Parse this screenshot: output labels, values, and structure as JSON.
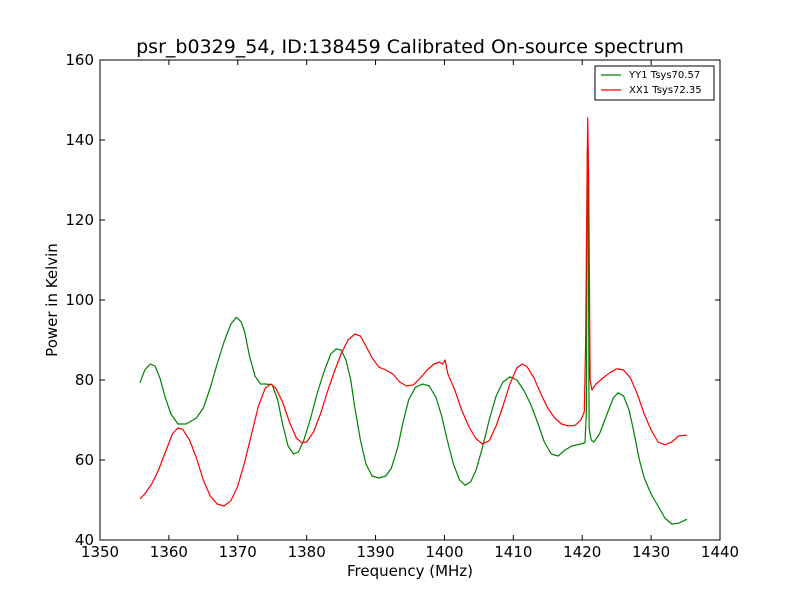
{
  "chart_data": {
    "type": "line",
    "title": "psr_b0329_54, ID:138459 Calibrated On-source spectrum",
    "xlabel": "Frequency (MHz)",
    "ylabel": "Power in Kelvin",
    "xlim": [
      1350,
      1440
    ],
    "ylim": [
      40,
      160
    ],
    "xticks": [
      1350,
      1360,
      1370,
      1380,
      1390,
      1400,
      1410,
      1420,
      1430,
      1440
    ],
    "yticks": [
      40,
      60,
      80,
      100,
      120,
      140,
      160
    ],
    "grid": false,
    "legend_position": "top-right",
    "series": [
      {
        "name": "YY1 Tsys70.57",
        "color": "#008000",
        "points": [
          [
            1355.8,
            79.3
          ],
          [
            1356.5,
            82.5
          ],
          [
            1357.3,
            84.0
          ],
          [
            1358.0,
            83.5
          ],
          [
            1358.7,
            80.5
          ],
          [
            1359.5,
            75.5
          ],
          [
            1360.3,
            71.5
          ],
          [
            1361.3,
            69.0
          ],
          [
            1362.5,
            69.0
          ],
          [
            1364.0,
            70.5
          ],
          [
            1365.0,
            73.0
          ],
          [
            1366.0,
            78.0
          ],
          [
            1367.0,
            84.0
          ],
          [
            1368.0,
            89.5
          ],
          [
            1369.0,
            94.0
          ],
          [
            1369.8,
            95.7
          ],
          [
            1370.5,
            94.5
          ],
          [
            1371.0,
            92.0
          ],
          [
            1371.7,
            86.0
          ],
          [
            1372.5,
            81.0
          ],
          [
            1373.3,
            79.0
          ],
          [
            1374.0,
            79.0
          ],
          [
            1375.0,
            78.8
          ],
          [
            1375.8,
            75.0
          ],
          [
            1376.5,
            69.0
          ],
          [
            1377.3,
            63.5
          ],
          [
            1378.1,
            61.5
          ],
          [
            1378.8,
            62.0
          ],
          [
            1379.5,
            64.5
          ],
          [
            1380.5,
            70.0
          ],
          [
            1381.5,
            76.5
          ],
          [
            1382.5,
            82.0
          ],
          [
            1383.5,
            86.5
          ],
          [
            1384.3,
            87.8
          ],
          [
            1385.0,
            87.5
          ],
          [
            1385.7,
            85.0
          ],
          [
            1386.4,
            80.0
          ],
          [
            1387.0,
            73.0
          ],
          [
            1387.8,
            65.0
          ],
          [
            1388.6,
            59.0
          ],
          [
            1389.5,
            56.0
          ],
          [
            1390.5,
            55.5
          ],
          [
            1391.5,
            56.0
          ],
          [
            1392.3,
            58.0
          ],
          [
            1393.2,
            63.0
          ],
          [
            1394.0,
            69.5
          ],
          [
            1394.8,
            75.0
          ],
          [
            1395.8,
            78.2
          ],
          [
            1396.8,
            79.0
          ],
          [
            1397.8,
            78.5
          ],
          [
            1398.8,
            75.5
          ],
          [
            1399.6,
            71.0
          ],
          [
            1400.4,
            65.0
          ],
          [
            1401.3,
            59.0
          ],
          [
            1402.2,
            55.0
          ],
          [
            1403.0,
            53.7
          ],
          [
            1403.8,
            54.5
          ],
          [
            1404.6,
            57.5
          ],
          [
            1405.5,
            63.0
          ],
          [
            1406.5,
            70.0
          ],
          [
            1407.5,
            76.0
          ],
          [
            1408.5,
            79.5
          ],
          [
            1409.5,
            80.8
          ],
          [
            1410.5,
            80.0
          ],
          [
            1411.5,
            77.5
          ],
          [
            1412.5,
            74.0
          ],
          [
            1413.5,
            69.5
          ],
          [
            1414.5,
            64.5
          ],
          [
            1415.5,
            61.5
          ],
          [
            1416.5,
            61.0
          ],
          [
            1417.5,
            62.5
          ],
          [
            1418.5,
            63.5
          ],
          [
            1419.8,
            64.0
          ],
          [
            1420.4,
            64.3
          ],
          [
            1420.6,
            72.0
          ],
          [
            1420.75,
            138.0
          ],
          [
            1420.85,
            138.0
          ],
          [
            1421.0,
            68.0
          ],
          [
            1421.3,
            65.0
          ],
          [
            1421.7,
            64.5
          ],
          [
            1422.5,
            66.5
          ],
          [
            1423.5,
            71.0
          ],
          [
            1424.5,
            75.5
          ],
          [
            1425.2,
            76.8
          ],
          [
            1426.0,
            76.0
          ],
          [
            1426.8,
            72.5
          ],
          [
            1427.5,
            67.0
          ],
          [
            1428.3,
            60.0
          ],
          [
            1429.0,
            55.5
          ],
          [
            1430.0,
            51.5
          ],
          [
            1431.0,
            48.5
          ],
          [
            1432.0,
            45.5
          ],
          [
            1433.0,
            44.0
          ],
          [
            1434.0,
            44.2
          ],
          [
            1435.2,
            45.2
          ]
        ]
      },
      {
        "name": "XX1 Tsys72.35",
        "color": "#ff0000",
        "points": [
          [
            1355.8,
            50.3
          ],
          [
            1356.5,
            51.5
          ],
          [
            1357.5,
            54.0
          ],
          [
            1358.5,
            57.5
          ],
          [
            1359.5,
            62.0
          ],
          [
            1360.5,
            66.5
          ],
          [
            1361.3,
            68.0
          ],
          [
            1362.0,
            67.7
          ],
          [
            1363.0,
            65.0
          ],
          [
            1364.0,
            60.5
          ],
          [
            1365.0,
            55.0
          ],
          [
            1366.0,
            51.0
          ],
          [
            1367.0,
            49.0
          ],
          [
            1368.0,
            48.5
          ],
          [
            1369.0,
            49.8
          ],
          [
            1370.0,
            53.5
          ],
          [
            1371.0,
            59.5
          ],
          [
            1372.0,
            66.5
          ],
          [
            1373.0,
            73.5
          ],
          [
            1374.0,
            78.0
          ],
          [
            1374.8,
            79.0
          ],
          [
            1375.5,
            78.0
          ],
          [
            1376.5,
            74.5
          ],
          [
            1377.5,
            69.5
          ],
          [
            1378.5,
            65.5
          ],
          [
            1379.3,
            64.3
          ],
          [
            1380.0,
            64.5
          ],
          [
            1381.0,
            67.0
          ],
          [
            1382.0,
            71.5
          ],
          [
            1383.0,
            77.0
          ],
          [
            1384.0,
            82.0
          ],
          [
            1385.0,
            86.5
          ],
          [
            1386.0,
            90.0
          ],
          [
            1387.0,
            91.5
          ],
          [
            1387.8,
            91.0
          ],
          [
            1388.6,
            88.5
          ],
          [
            1389.5,
            85.5
          ],
          [
            1390.5,
            83.2
          ],
          [
            1391.5,
            82.5
          ],
          [
            1392.5,
            81.5
          ],
          [
            1393.5,
            79.5
          ],
          [
            1394.5,
            78.5
          ],
          [
            1395.5,
            78.8
          ],
          [
            1396.5,
            80.5
          ],
          [
            1397.5,
            82.5
          ],
          [
            1398.5,
            84.0
          ],
          [
            1399.3,
            84.5
          ],
          [
            1399.7,
            84.0
          ],
          [
            1400.1,
            85.0
          ],
          [
            1400.5,
            81.5
          ],
          [
            1401.5,
            77.5
          ],
          [
            1402.5,
            72.5
          ],
          [
            1403.5,
            68.5
          ],
          [
            1404.5,
            65.5
          ],
          [
            1405.5,
            64.0
          ],
          [
            1406.5,
            64.8
          ],
          [
            1407.5,
            68.5
          ],
          [
            1408.5,
            73.5
          ],
          [
            1409.5,
            79.0
          ],
          [
            1410.5,
            83.0
          ],
          [
            1411.3,
            84.0
          ],
          [
            1412.0,
            83.3
          ],
          [
            1413.0,
            80.5
          ],
          [
            1414.0,
            76.5
          ],
          [
            1415.0,
            73.0
          ],
          [
            1416.0,
            70.5
          ],
          [
            1417.0,
            69.0
          ],
          [
            1418.0,
            68.5
          ],
          [
            1419.0,
            68.7
          ],
          [
            1419.8,
            70.0
          ],
          [
            1420.3,
            72.0
          ],
          [
            1420.5,
            90.0
          ],
          [
            1420.7,
            130.0
          ],
          [
            1420.8,
            145.5
          ],
          [
            1420.95,
            128.0
          ],
          [
            1421.15,
            80.0
          ],
          [
            1421.4,
            77.5
          ],
          [
            1422.0,
            79.0
          ],
          [
            1423.0,
            80.5
          ],
          [
            1424.0,
            81.8
          ],
          [
            1425.0,
            82.8
          ],
          [
            1426.0,
            82.5
          ],
          [
            1427.0,
            80.5
          ],
          [
            1428.0,
            76.5
          ],
          [
            1429.0,
            71.5
          ],
          [
            1430.0,
            67.5
          ],
          [
            1431.0,
            64.5
          ],
          [
            1432.0,
            63.8
          ],
          [
            1433.0,
            64.5
          ],
          [
            1434.0,
            66.0
          ],
          [
            1435.2,
            66.2
          ]
        ]
      }
    ]
  }
}
